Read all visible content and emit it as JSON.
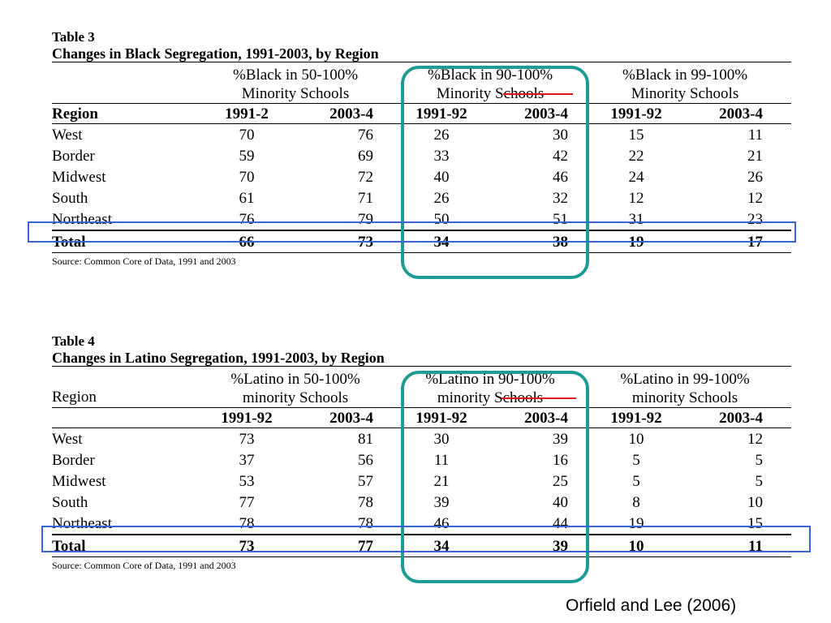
{
  "table3": {
    "number": "Table 3",
    "title": "Changes in Black Segregation, 1991-2003, by Region",
    "groups": [
      {
        "line1": "%Black in 50-100%",
        "line2": "Minority Schools"
      },
      {
        "line1": "%Black in 90-100%",
        "line2": "Minority Schools"
      },
      {
        "line1": "%Black in 99-100%",
        "line2": "Minority Schools"
      }
    ],
    "columns": [
      "Region",
      "1991-2",
      "2003-4",
      "1991-92",
      "2003-4",
      "1991-92",
      "2003-4"
    ],
    "rows": [
      [
        "West",
        "70",
        "76",
        "26",
        "30",
        "15",
        "11"
      ],
      [
        "Border",
        "59",
        "69",
        "33",
        "42",
        "22",
        "21"
      ],
      [
        "Midwest",
        "70",
        "72",
        "40",
        "46",
        "24",
        "26"
      ],
      [
        "South",
        "61",
        "71",
        "26",
        "32",
        "12",
        "12"
      ],
      [
        "Northeast",
        "76",
        "79",
        "50",
        "51",
        "31",
        "23"
      ]
    ],
    "total": [
      "Total",
      "66",
      "73",
      "34",
      "38",
      "19",
      "17"
    ],
    "source": "Source: Common Core of Data, 1991 and 2003"
  },
  "table4": {
    "number": "Table 4",
    "title": "Changes in Latino Segregation, 1991-2003, by Region",
    "region_label": "Region",
    "groups": [
      {
        "line1": "%Latino  in 50-100%",
        "line2": "minority Schools"
      },
      {
        "line1": "%Latino in 90-100%",
        "line2": "minority Schools"
      },
      {
        "line1": "%Latino in 99-100%",
        "line2": "minority Schools"
      }
    ],
    "columns": [
      "",
      "1991-92",
      "2003-4",
      "1991-92",
      "2003-4",
      "1991-92",
      "2003-4"
    ],
    "rows": [
      [
        "West",
        "73",
        "81",
        "30",
        "39",
        "10",
        "12"
      ],
      [
        "Border",
        "37",
        "56",
        "11",
        "16",
        "5",
        "5"
      ],
      [
        "Midwest",
        "53",
        "57",
        "21",
        "25",
        "5",
        "5"
      ],
      [
        "South",
        "77",
        "78",
        "39",
        "40",
        "8",
        "10"
      ],
      [
        "Northeast",
        "78",
        "78",
        "46",
        "44",
        "19",
        "15"
      ]
    ],
    "total": [
      "Total",
      "73",
      "77",
      "34",
      "39",
      "10",
      "11"
    ],
    "source": "Source: Common Core of Data, 1991 and 2003"
  },
  "credit": "Orfield and Lee (2006)",
  "colors": {
    "teal_box": "#1e9b94",
    "blue_box": "#3a63d6",
    "red_underline": "#e0141a"
  }
}
